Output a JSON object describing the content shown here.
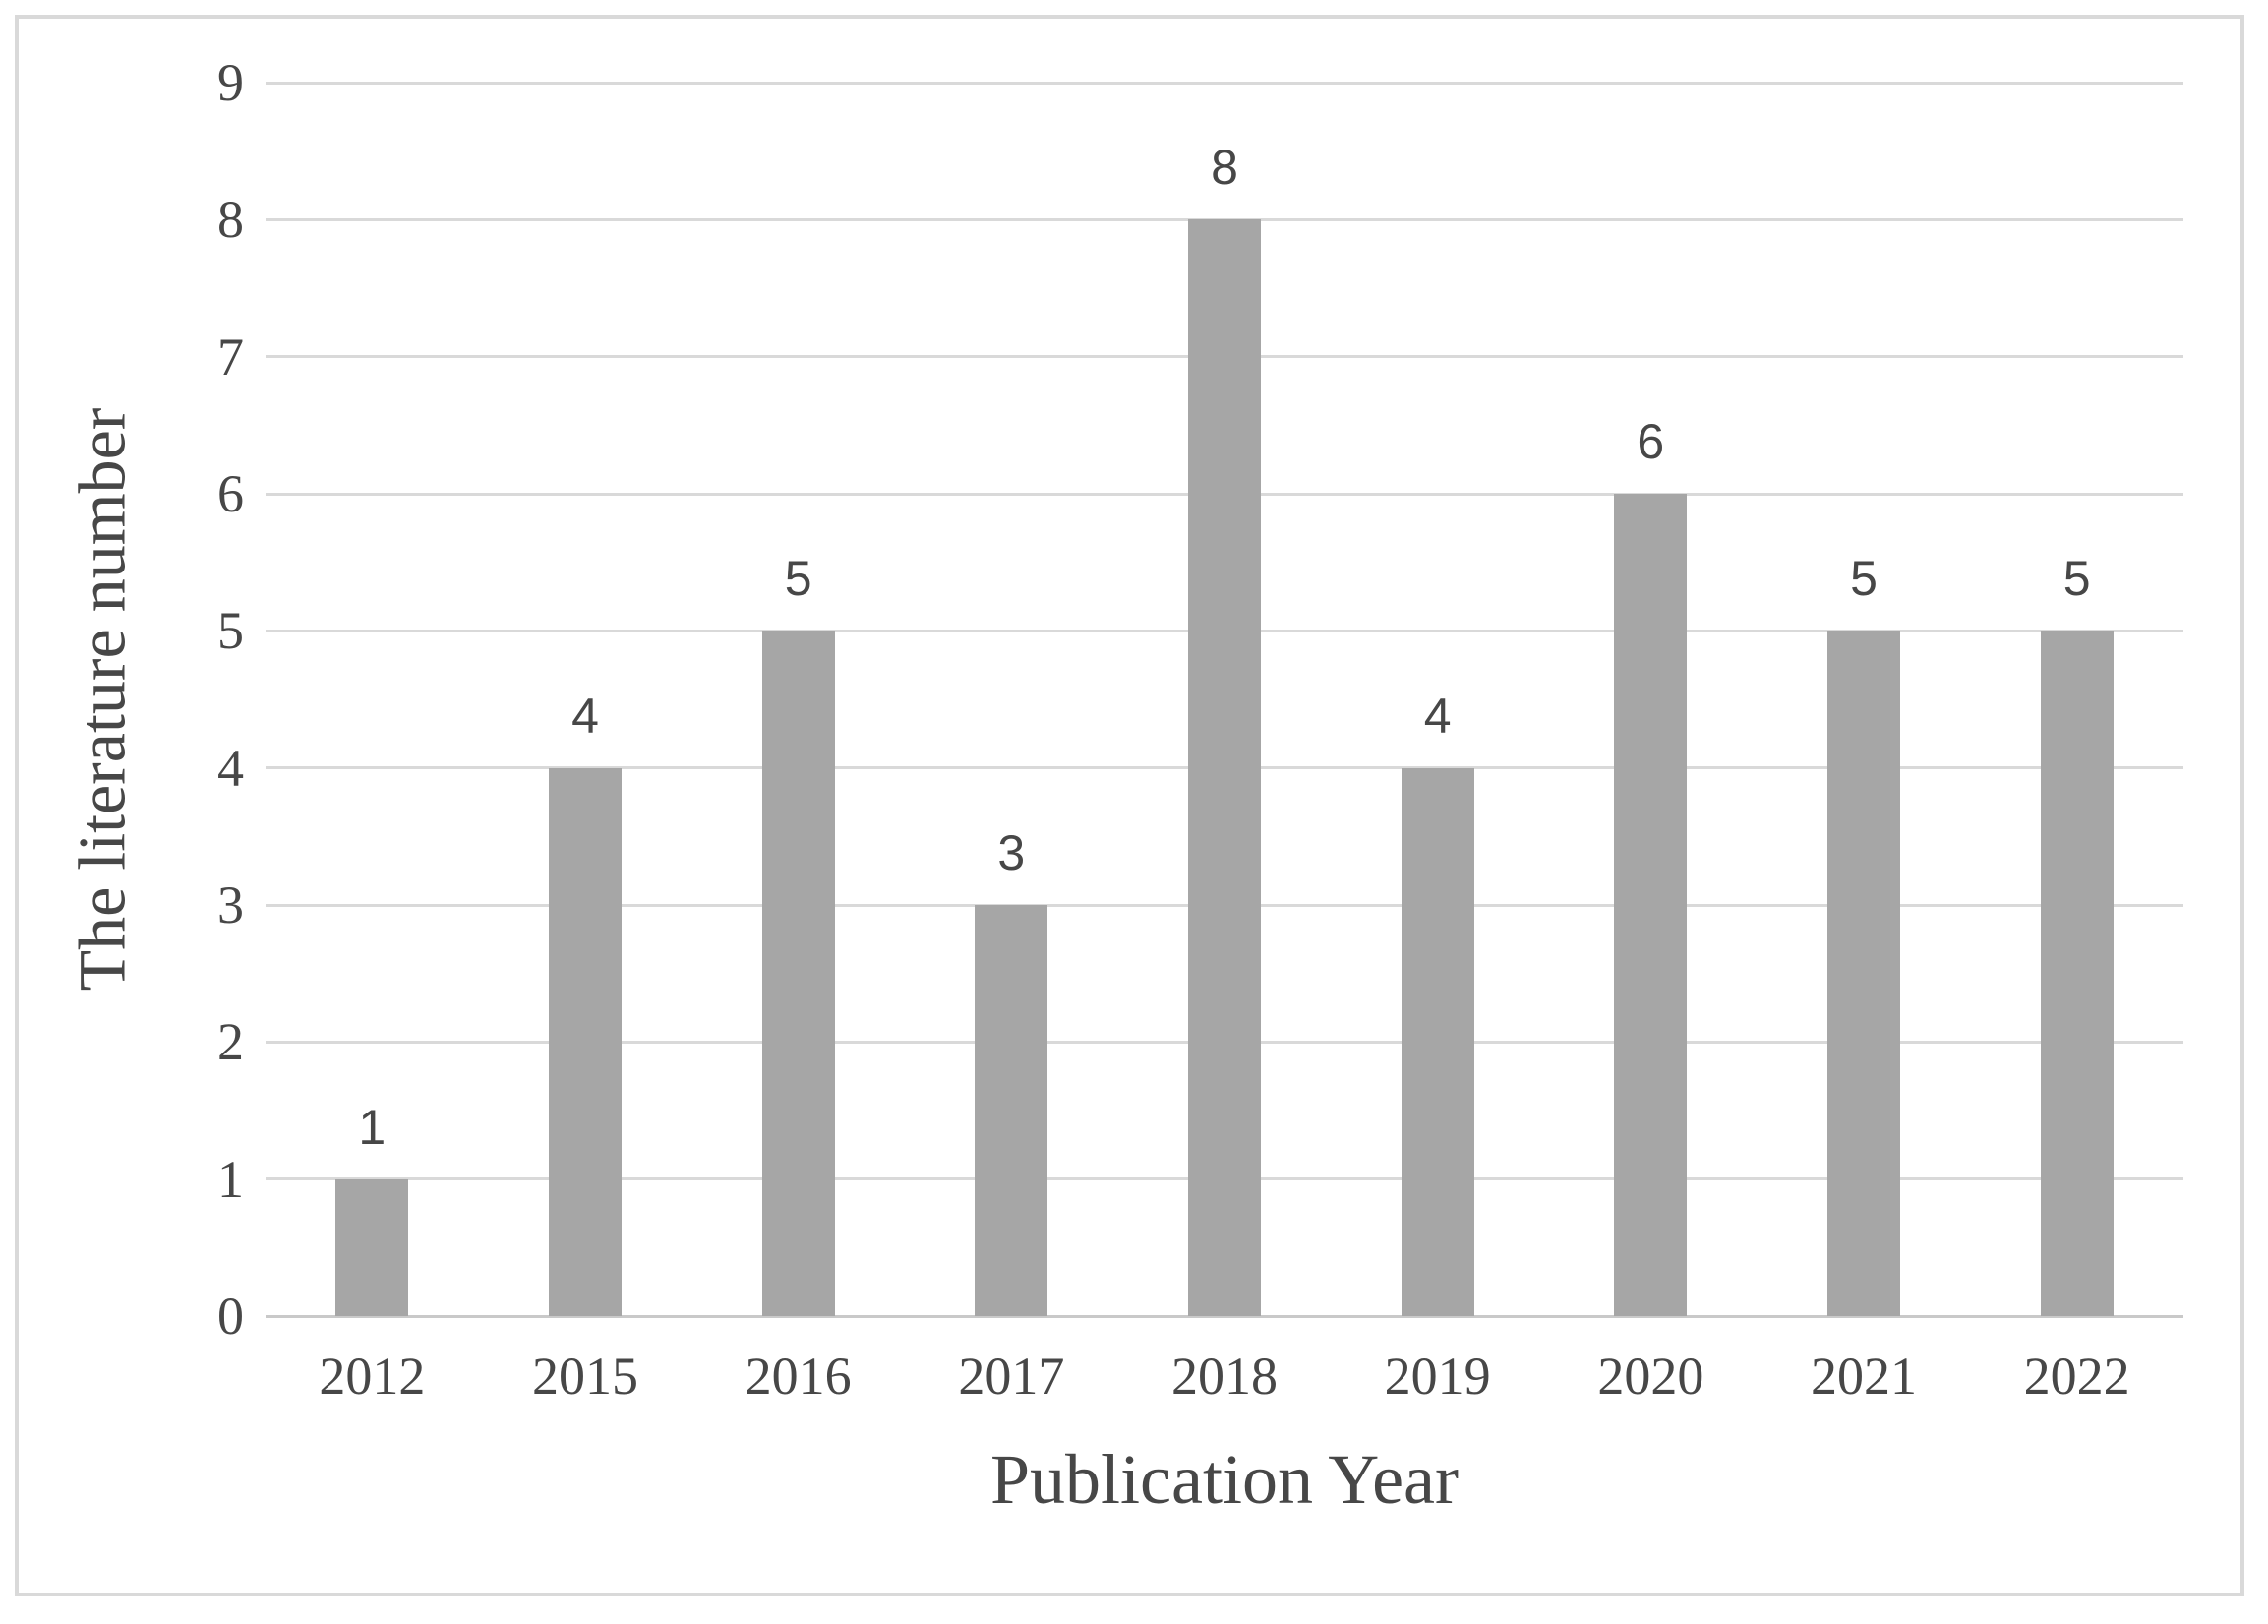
{
  "chart_data": {
    "type": "bar",
    "title": "",
    "categories": [
      "2012",
      "2015",
      "2016",
      "2017",
      "2018",
      "2019",
      "2020",
      "2021",
      "2022"
    ],
    "values": [
      1,
      4,
      5,
      3,
      8,
      4,
      6,
      5,
      5
    ],
    "xlabel": "Publication Year",
    "ylabel": "The literature number",
    "ylim": [
      0,
      9
    ],
    "ytick_step": 1,
    "yticks": [
      "0",
      "1",
      "2",
      "3",
      "4",
      "5",
      "6",
      "7",
      "8",
      "9"
    ],
    "grid": "horizontal",
    "legend": "none",
    "data_labels": true,
    "bar_color": "#a6a6a6",
    "gridline_color": "#d9d9d9",
    "axis_line_color": "#c9c9c9",
    "text_color": "#474747",
    "frame_border_color": "#d9d9d9"
  }
}
